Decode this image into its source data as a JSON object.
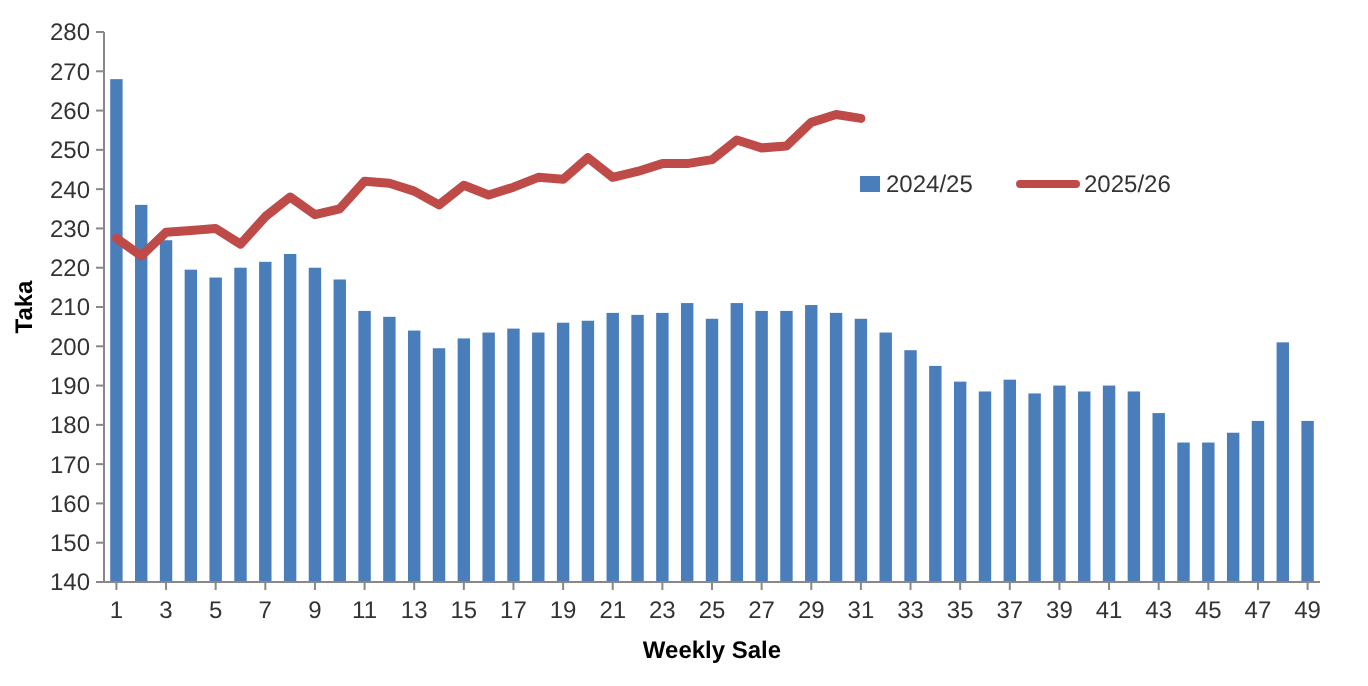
{
  "chart_data": {
    "type": "bar",
    "xlabel": "Weekly Sale",
    "ylabel": "Taka",
    "x": [
      1,
      2,
      3,
      4,
      5,
      6,
      7,
      8,
      9,
      10,
      11,
      12,
      13,
      14,
      15,
      16,
      17,
      18,
      19,
      20,
      21,
      22,
      23,
      24,
      25,
      26,
      27,
      28,
      29,
      30,
      31,
      32,
      33,
      34,
      35,
      36,
      37,
      38,
      39,
      40,
      41,
      42,
      43,
      44,
      45,
      46,
      47,
      48,
      49
    ],
    "xlim": [
      0.5,
      49.5
    ],
    "xticks": [
      1,
      3,
      5,
      7,
      9,
      11,
      13,
      15,
      17,
      19,
      21,
      23,
      25,
      27,
      29,
      31,
      33,
      35,
      37,
      39,
      41,
      43,
      45,
      47,
      49
    ],
    "series": [
      {
        "name": "2024/25",
        "color": "#4a7ebb",
        "values": [
          268,
          236,
          227,
          219.5,
          217.5,
          220,
          221.5,
          223.5,
          220,
          217,
          209,
          207.5,
          204,
          199.5,
          202,
          203.5,
          204.5,
          203.5,
          206,
          206.5,
          208.5,
          208,
          208.5,
          211,
          207,
          211,
          209,
          209,
          210.5,
          208.5,
          207,
          203.5,
          199,
          195,
          191,
          188.5,
          191.5,
          188,
          190,
          188.5,
          190,
          188.5,
          183,
          175.5,
          175.5,
          178,
          181,
          201,
          181
        ]
      },
      {
        "name": "2025/26",
        "type": "line",
        "color": "#be4b48",
        "values": [
          227.5,
          223,
          229,
          229.5,
          230,
          226,
          233,
          238,
          233.5,
          235,
          242,
          241.5,
          239.5,
          236,
          241,
          238.5,
          240.5,
          243,
          242.5,
          248,
          243,
          244.5,
          246.5,
          246.5,
          247.5,
          252.5,
          250.5,
          251,
          257,
          259,
          258,
          null,
          null,
          null,
          null,
          null,
          null,
          null,
          null,
          null,
          null,
          null,
          null,
          null,
          null,
          null,
          null,
          null,
          null
        ]
      }
    ],
    "ylim": [
      140,
      280
    ],
    "yticks": [
      140,
      150,
      160,
      170,
      180,
      190,
      200,
      210,
      220,
      230,
      240,
      250,
      260,
      270,
      280
    ],
    "grid": false,
    "legend": "top right",
    "marker": "none",
    "line_style": "solid"
  }
}
